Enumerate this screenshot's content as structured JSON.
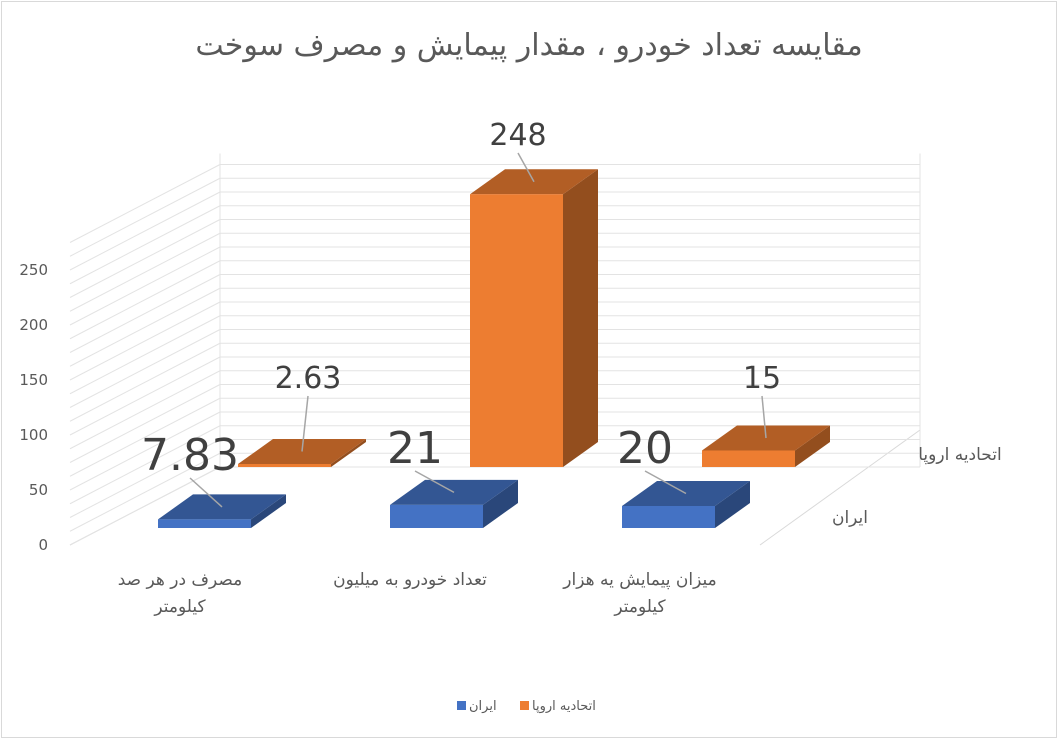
{
  "chart_data": {
    "type": "bar",
    "subtype": "3d-clustered-column",
    "title": "مقایسه تعداد خودرو ، مقدار پیمایش و مصرف سوخت",
    "categories": [
      "مصرف در هر صد کیلومتر",
      "تعداد خودرو به میلیون",
      "میزان پیمایش یه هزار کیلومتر"
    ],
    "series": [
      {
        "name": "ایران",
        "values": [
          7.83,
          21,
          20
        ],
        "labels": [
          "7.83",
          "21",
          "20"
        ],
        "color": "#4472C4"
      },
      {
        "name": "اتحادیه اروپا",
        "values": [
          2.63,
          248,
          15
        ],
        "labels": [
          "2.63",
          "248",
          "15"
        ],
        "color": "#ED7D31"
      }
    ],
    "yticks": [
      "0",
      "50",
      "100",
      "150",
      "200",
      "250"
    ],
    "ylim": [
      0,
      250
    ],
    "grid": true,
    "legend": "bottom"
  }
}
